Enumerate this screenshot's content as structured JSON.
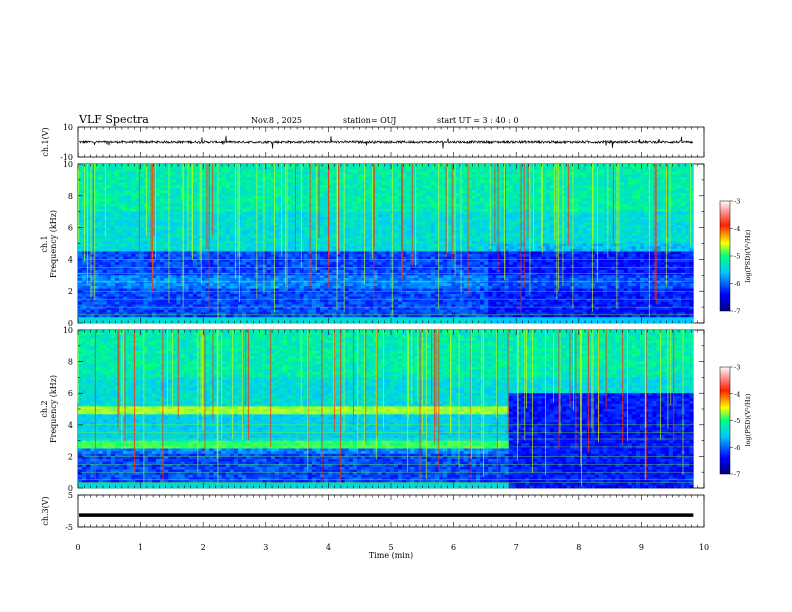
{
  "header": {
    "title": "VLF Spectra",
    "date": "Nov.8 , 2025",
    "station": "station= OUJ",
    "start": "start UT = 3 : 40 : 0"
  },
  "chart_data": [
    {
      "type": "line",
      "ylabel": "ch.1(V)",
      "ylim": [
        -10,
        10
      ],
      "y_tick_labels": [
        "10",
        "-10"
      ],
      "description_values": {
        "baseline": 0
      },
      "x": [
        0,
        10
      ],
      "xlim": [
        0,
        10
      ]
    },
    {
      "type": "heatmap",
      "ylabel_line1": "ch.1",
      "ylabel_line2": "Frequency (kHz)",
      "ylim": [
        0,
        10
      ],
      "y_tick_labels": [
        "0",
        "2",
        "4",
        "6",
        "8",
        "10"
      ],
      "xlim": [
        0,
        10
      ],
      "data_extent_min": 9.83,
      "colorbar": {
        "label": "log(PSD)(V²/Hz)",
        "range": [
          -7,
          -3
        ],
        "tick_labels": [
          "-3",
          "-4",
          "-5",
          "-6",
          "-7"
        ]
      }
    },
    {
      "type": "heatmap",
      "ylabel_line1": "ch.2",
      "ylabel_line2": "Frequency (kHz)",
      "ylim": [
        0,
        10
      ],
      "y_tick_labels": [
        "0",
        "2",
        "4",
        "6",
        "8",
        "10"
      ],
      "xlim": [
        0,
        10
      ],
      "data_extent_min": 9.83,
      "colorbar": {
        "label": "log(PSD)(V²/Hz)",
        "range": [
          -7,
          -3
        ],
        "tick_labels": [
          "-3",
          "-4",
          "-5",
          "-6",
          "-7"
        ]
      }
    },
    {
      "type": "line",
      "ylabel": "ch.3(V)",
      "ylim": [
        -5,
        5
      ],
      "y_tick_labels": [
        "5",
        "-5"
      ],
      "values_constant": -1.3,
      "xlim": [
        0,
        10
      ],
      "xlabel": "Time (min)",
      "x_tick_labels": [
        "0",
        "1",
        "2",
        "3",
        "4",
        "5",
        "6",
        "7",
        "8",
        "9",
        "10"
      ]
    }
  ]
}
